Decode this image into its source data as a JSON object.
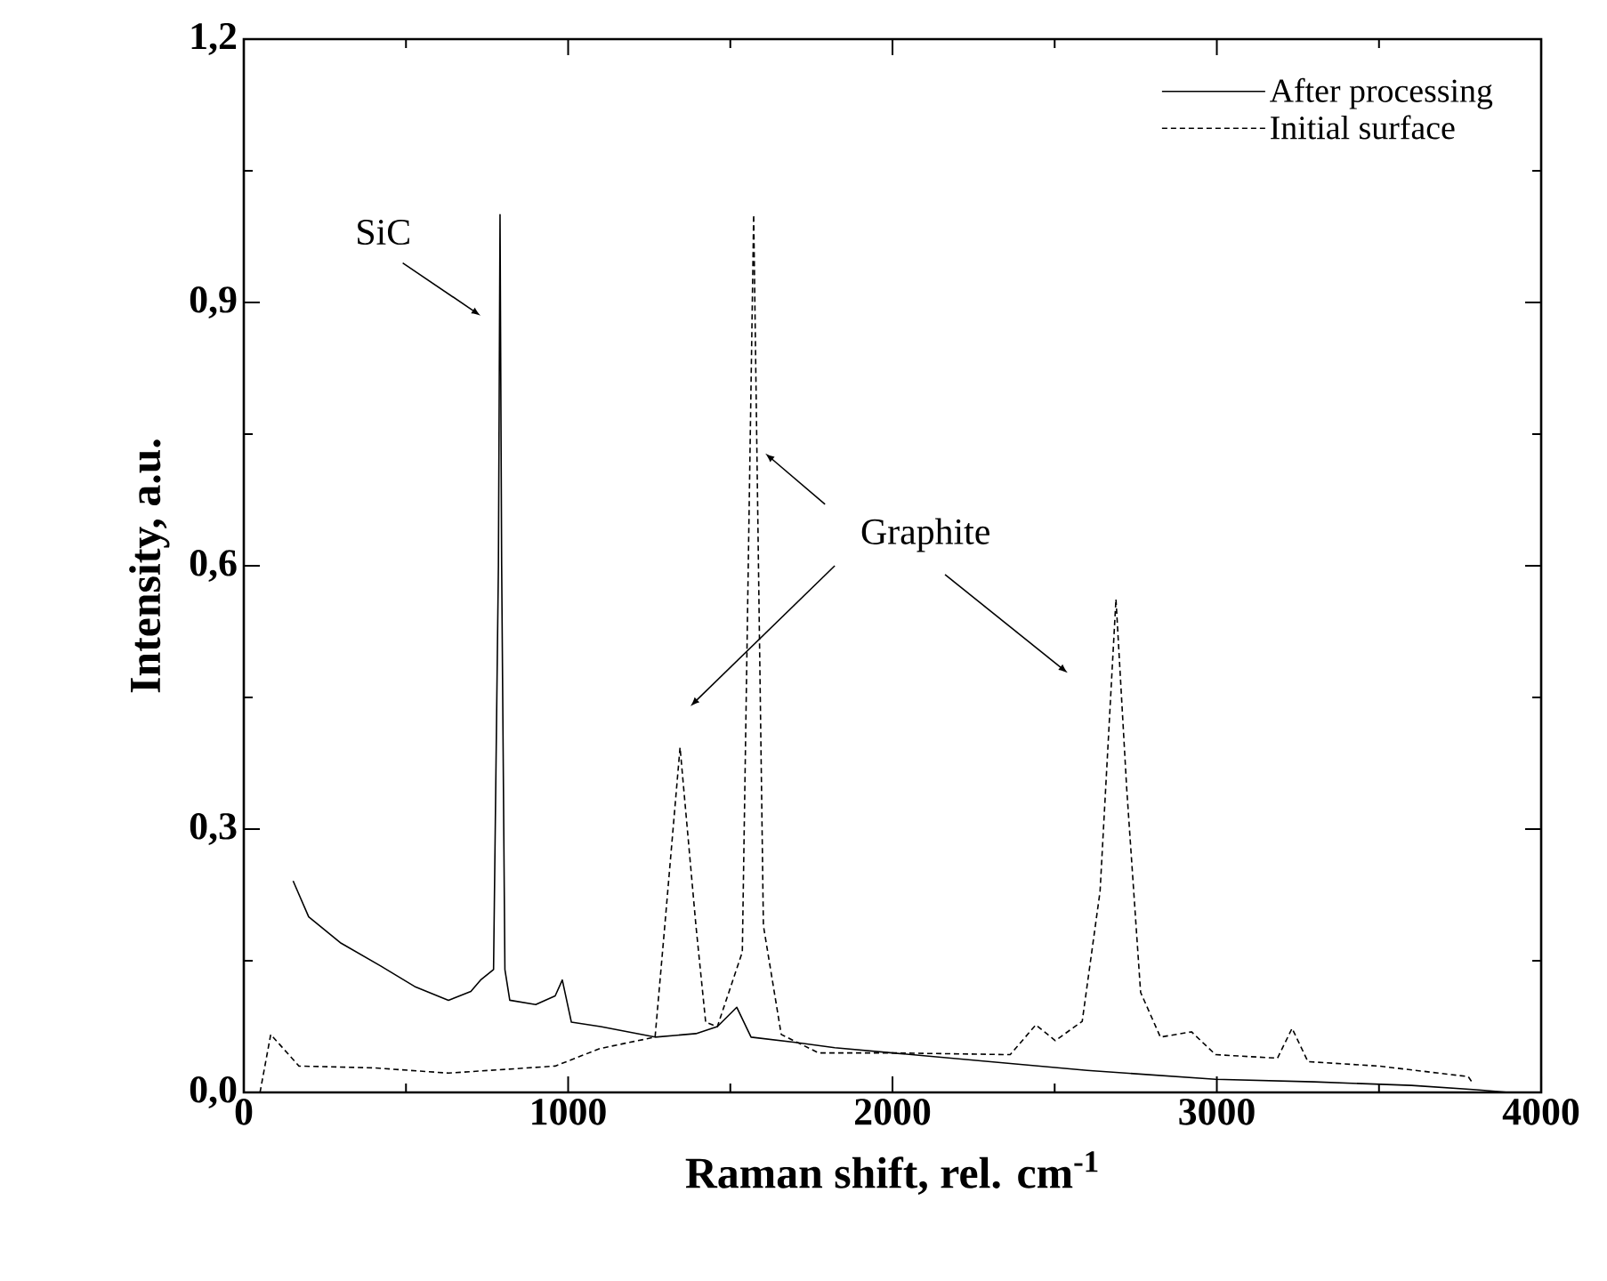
{
  "chart_data": {
    "type": "line",
    "xlabel": "Raman shift, rel. cm$^{-1}$",
    "ylabel": "Intensity, a.u.",
    "xlim": [
      0,
      4000
    ],
    "xticks": [
      0,
      1000,
      2000,
      3000,
      4000
    ],
    "ylim": [
      0,
      1.2
    ],
    "yticks": [
      {
        "value": 0,
        "label": "0,0"
      },
      {
        "value": 0.3,
        "label": "0,3"
      },
      {
        "value": 0.6,
        "label": "0,6"
      },
      {
        "value": 0.9,
        "label": "0,9"
      },
      {
        "value": 1.2,
        "label": "1,2"
      }
    ],
    "legend": "top right",
    "series": [
      {
        "name": "After processing",
        "color": "#000000",
        "line_style": "solid",
        "x": [
          152,
          200,
          300,
          422,
          530,
          631,
          700,
          730,
          770,
          785,
          790,
          795,
          805,
          820,
          900,
          960,
          982,
          1010,
          1100,
          1268,
          1394,
          1460,
          1520,
          1564,
          1700,
          1822,
          2000,
          2300,
          2600,
          2996,
          3300,
          3600,
          3800,
          3900
        ],
        "values": [
          0.241,
          0.2,
          0.17,
          0.144,
          0.12,
          0.105,
          0.115,
          0.128,
          0.14,
          0.6,
          1.0,
          0.6,
          0.14,
          0.105,
          0.1,
          0.11,
          0.128,
          0.08,
          0.075,
          0.063,
          0.067,
          0.075,
          0.097,
          0.063,
          0.057,
          0.051,
          0.045,
          0.035,
          0.025,
          0.015,
          0.012,
          0.008,
          0.003,
          0
        ]
      },
      {
        "name": "Initial surface",
        "color": "#000000",
        "line_style": "dashed",
        "x": [
          50,
          83,
          170,
          400,
          631,
          960,
          1098,
          1268,
          1298,
          1345,
          1394,
          1424,
          1460,
          1537,
          1572,
          1602,
          1657,
          1772,
          2000,
          2363,
          2442,
          2502,
          2585,
          2640,
          2689,
          2722,
          2765,
          2826,
          2922,
          2996,
          3187,
          3232,
          3281,
          3500,
          3775,
          3790
        ],
        "values": [
          0,
          0.066,
          0.03,
          0.028,
          0.022,
          0.03,
          0.05,
          0.063,
          0.19,
          0.393,
          0.19,
          0.08,
          0.075,
          0.16,
          1.0,
          0.19,
          0.066,
          0.045,
          0.045,
          0.043,
          0.077,
          0.059,
          0.081,
          0.229,
          0.562,
          0.347,
          0.114,
          0.063,
          0.069,
          0.043,
          0.039,
          0.073,
          0.035,
          0.03,
          0.018,
          0.01
        ]
      }
    ],
    "annotations": [
      {
        "text": "SiC",
        "x": 790,
        "y": 1.0
      },
      "Graphite"
    ]
  }
}
